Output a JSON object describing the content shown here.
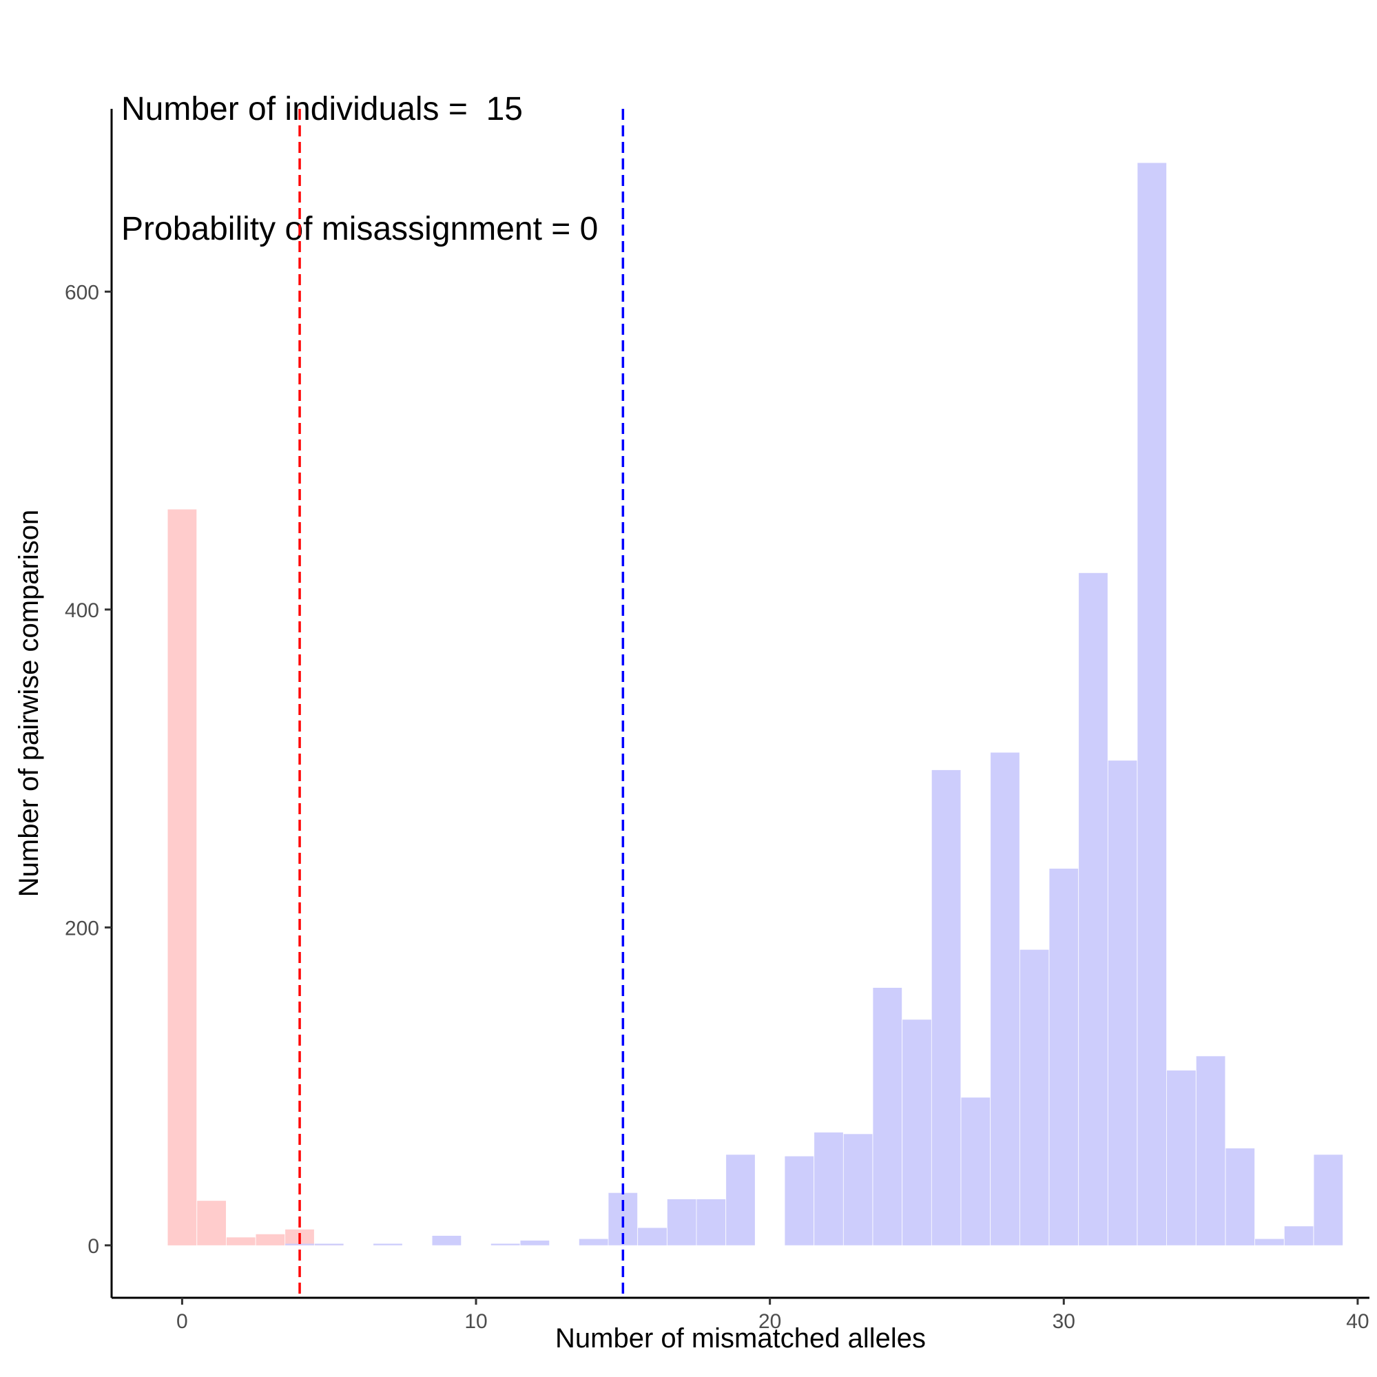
{
  "chart_data": {
    "type": "bar",
    "title_lines": [
      "Number of individuals =  15",
      "Probability of misassignment = 0"
    ],
    "xlabel": "Number of mismatched alleles",
    "ylabel": "Number of pairwise comparison",
    "xlim": [
      -2.4,
      40.4
    ],
    "ylim": [
      -33,
      715
    ],
    "x_ticks": [
      0,
      10,
      20,
      30,
      40
    ],
    "y_ticks": [
      0,
      200,
      400,
      600
    ],
    "bin_width": 0.98,
    "grid": false,
    "legend": "none",
    "series": [
      {
        "color": "#ffcccc",
        "x": [
          0,
          1,
          2,
          3,
          4,
          5
        ],
        "values": [
          463,
          28,
          5,
          7,
          10,
          1
        ]
      },
      {
        "color": "#ccccfc",
        "x": [
          4,
          5,
          7,
          9,
          11,
          12,
          14,
          15,
          16,
          17,
          18,
          19,
          21,
          22,
          23,
          24,
          25,
          26,
          27,
          28,
          29,
          30,
          31,
          32,
          33,
          34,
          35,
          36,
          37,
          38,
          39
        ],
        "values": [
          1,
          1,
          1,
          6,
          1,
          3,
          4,
          33,
          11,
          29,
          29,
          57,
          56,
          71,
          70,
          162,
          142,
          299,
          93,
          310,
          186,
          237,
          423,
          305,
          681,
          110,
          119,
          61,
          4,
          12,
          57
        ]
      }
    ],
    "reference_lines": [
      {
        "x": 4,
        "color": "#ff0000",
        "style": "dashed"
      },
      {
        "x": 15,
        "color": "#0000ff",
        "style": "dashed"
      }
    ]
  }
}
